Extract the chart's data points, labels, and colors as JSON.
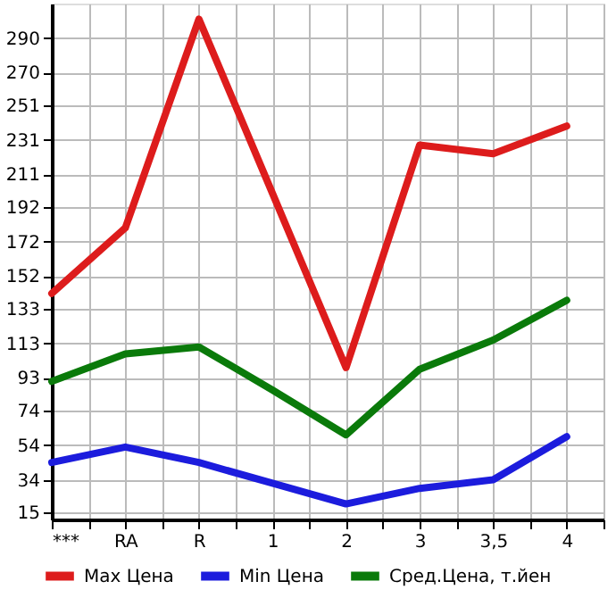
{
  "chart_data": {
    "type": "line",
    "categories": [
      "***",
      "RA",
      "R",
      "1",
      "2",
      "3",
      "3,5",
      "4"
    ],
    "series": [
      {
        "name": "Max Цена",
        "color": "#dd1c1c",
        "values": [
          142,
          180,
          301,
          200,
          99,
          228,
          223,
          239
        ]
      },
      {
        "name": "Min Цена",
        "color": "#1c1cdd",
        "values": [
          44,
          53,
          44,
          32,
          20,
          29,
          34,
          59
        ]
      },
      {
        "name": "Сред.Цена, т.йен",
        "color": "#0a7a0a",
        "values": [
          91,
          107,
          111,
          86,
          60,
          98,
          115,
          138
        ]
      }
    ],
    "ylim": [
      11,
      310
    ],
    "yticks": [
      15,
      34,
      54,
      74,
      93,
      113,
      133,
      152,
      172,
      192,
      211,
      231,
      251,
      270,
      290
    ],
    "grid": true,
    "legend": "bottom",
    "line_style": "solid",
    "marker": "none"
  }
}
